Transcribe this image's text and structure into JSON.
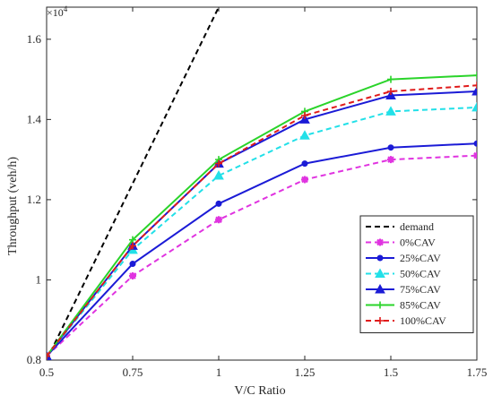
{
  "chart_data": {
    "type": "line",
    "title": "",
    "xlabel": "V/C Ratio",
    "ylabel": "Throughput (veh/h)",
    "y_exponent_label": "×10^4",
    "xlim": [
      0.5,
      1.75
    ],
    "ylim": [
      0.8,
      1.68
    ],
    "xticks": [
      0.5,
      0.75,
      1,
      1.25,
      1.5,
      1.75
    ],
    "xtick_labels": [
      "0.5",
      "0.75",
      "1",
      "1.25",
      "1.5",
      "1.75"
    ],
    "yticks": [
      0.8,
      1.0,
      1.2,
      1.4,
      1.6
    ],
    "ytick_labels": [
      "0.8",
      "1",
      "1.2",
      "1.4",
      "1.6"
    ],
    "grid": false,
    "legend_position": "right",
    "x": [
      0.5,
      0.75,
      1,
      1.25,
      1.5,
      1.75
    ],
    "series": [
      {
        "name": "demand",
        "color": "#000000",
        "dash": "dashed",
        "marker": "none",
        "x": [
          0.5,
          1.0
        ],
        "values": [
          0.8,
          1.68
        ]
      },
      {
        "name": "0%CAV",
        "color": "#e033e0",
        "dash": "dashed",
        "marker": "star",
        "values": [
          0.81,
          1.01,
          1.15,
          1.25,
          1.3,
          1.31
        ]
      },
      {
        "name": "25%CAV",
        "color": "#1b1bd6",
        "dash": "solid",
        "marker": "dot",
        "values": [
          0.81,
          1.04,
          1.19,
          1.29,
          1.33,
          1.34
        ]
      },
      {
        "name": "50%CAV",
        "color": "#22e0e8",
        "dash": "dashed",
        "marker": "triangle",
        "values": [
          0.81,
          1.075,
          1.26,
          1.36,
          1.42,
          1.43
        ]
      },
      {
        "name": "75%CAV",
        "color": "#1b1bd6",
        "dash": "solid",
        "marker": "triangle",
        "values": [
          0.81,
          1.085,
          1.29,
          1.4,
          1.46,
          1.47
        ]
      },
      {
        "name": "85%CAV",
        "color": "#2ad42a",
        "dash": "solid",
        "marker": "plus",
        "values": [
          0.81,
          1.1,
          1.3,
          1.42,
          1.5,
          1.51
        ]
      },
      {
        "name": "100%CAV",
        "color": "#e01b1b",
        "dash": "dashed",
        "marker": "plus",
        "values": [
          0.81,
          1.085,
          1.29,
          1.41,
          1.47,
          1.485
        ]
      }
    ]
  }
}
